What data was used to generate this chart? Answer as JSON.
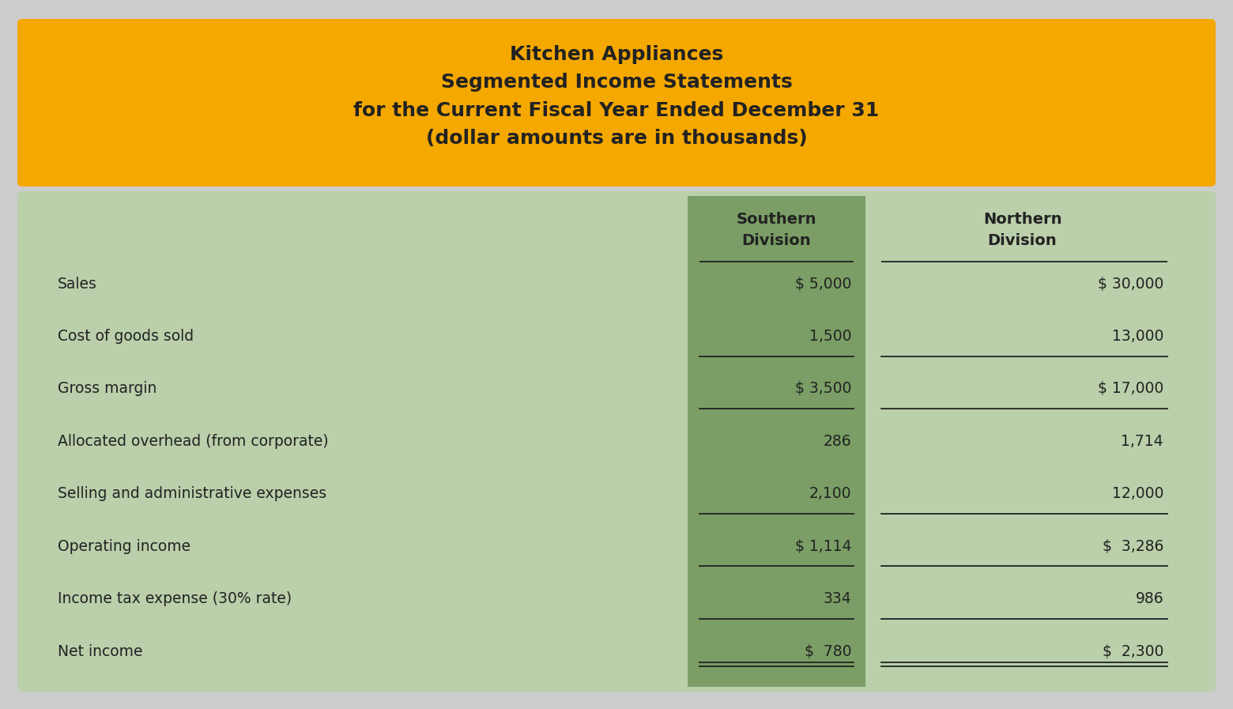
{
  "title_lines": [
    "Kitchen Appliances",
    "Segmented Income Statements",
    "for the Current Fiscal Year Ended December 31",
    "(dollar amounts are in thousands)"
  ],
  "header_bg": "#F5A800",
  "table_bg_light": "#BACFAA",
  "table_bg_dark": "#7A9E65",
  "outer_bg": "#CCCCCC",
  "col_headers": [
    "Southern\nDivision",
    "Northern\nDivision"
  ],
  "row_labels": [
    "Sales",
    "Cost of goods sold",
    "Gross margin",
    "Allocated overhead (from corporate)",
    "Selling and administrative expenses",
    "Operating income",
    "Income tax expense (30% rate)",
    "Net income"
  ],
  "southern_values": [
    "$ 5,000",
    "1,500",
    "$ 3,500",
    "286",
    "2,100",
    "$ 1,114",
    "334",
    "$  780"
  ],
  "northern_values": [
    "$ 30,000",
    "13,000",
    "$ 17,000",
    "1,714",
    "12,000",
    "$  3,286",
    "986",
    "$  2,300"
  ],
  "single_underline_after": [
    1,
    2,
    4,
    5,
    6
  ],
  "double_underline_after": [
    7
  ],
  "text_color": "#222222",
  "font_size_title": 18,
  "font_size_header": 14,
  "font_size_body": 13.5
}
